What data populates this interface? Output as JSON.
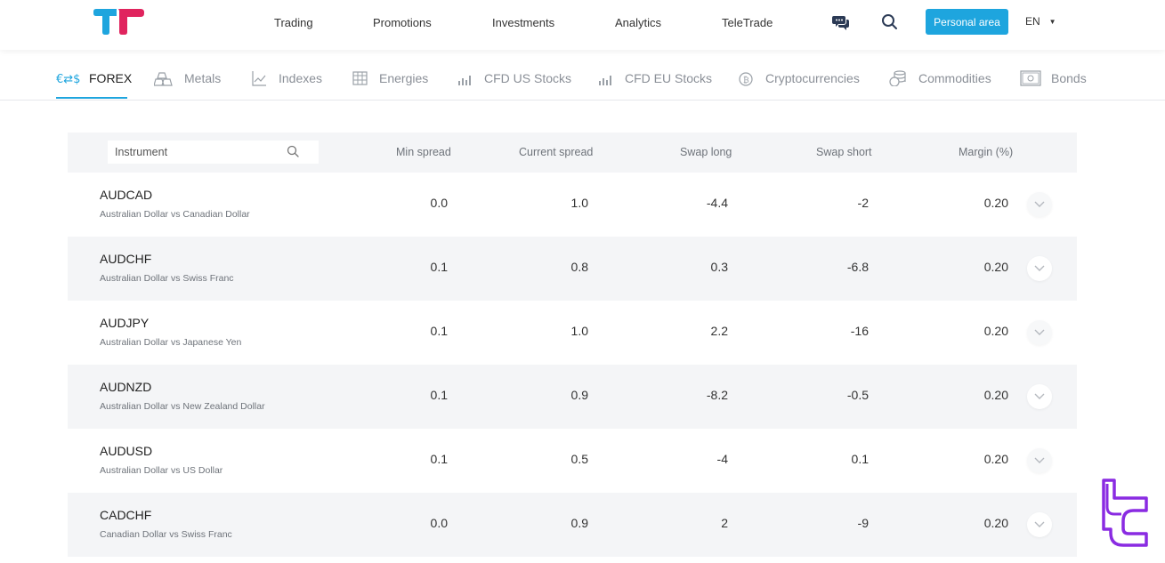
{
  "header": {
    "nav": [
      "Trading",
      "Promotions",
      "Investments",
      "Analytics",
      "TeleTrade"
    ],
    "personal_area": "Personal area",
    "language": "EN",
    "accent": "#1ea5de",
    "logo_colors": [
      "#1ea5de",
      "#e0245e"
    ]
  },
  "tabs": [
    {
      "label": "FOREX",
      "icon": "currency-exchange-icon",
      "active": true
    },
    {
      "label": "Metals",
      "icon": "gold-bars-icon"
    },
    {
      "label": "Indexes",
      "icon": "chart-growth-icon"
    },
    {
      "label": "Energies",
      "icon": "oil-rig-icon"
    },
    {
      "label": "CFD US Stocks",
      "icon": "bar-chart-icon"
    },
    {
      "label": "CFD EU Stocks",
      "icon": "bar-chart-icon"
    },
    {
      "label": "Cryptocurrencies",
      "icon": "bitcoin-icon"
    },
    {
      "label": "Commodities",
      "icon": "coins-stack-icon"
    },
    {
      "label": "Bonds",
      "icon": "certificate-icon"
    }
  ],
  "table": {
    "search_placeholder": "Instrument",
    "columns": [
      "Min spread",
      "Current spread",
      "Swap long",
      "Swap short",
      "Margin (%)"
    ],
    "rows": [
      {
        "symbol": "AUDCAD",
        "description": "Australian Dollar vs Canadian Dollar",
        "min_spread": "0.0",
        "current_spread": "1.0",
        "swap_long": "-4.4",
        "swap_short": "-2",
        "margin": "0.20"
      },
      {
        "symbol": "AUDCHF",
        "description": "Australian Dollar vs Swiss Franc",
        "min_spread": "0.1",
        "current_spread": "0.8",
        "swap_long": "0.3",
        "swap_short": "-6.8",
        "margin": "0.20"
      },
      {
        "symbol": "AUDJPY",
        "description": "Australian Dollar vs Japanese Yen",
        "min_spread": "0.1",
        "current_spread": "1.0",
        "swap_long": "2.2",
        "swap_short": "-16",
        "margin": "0.20"
      },
      {
        "symbol": "AUDNZD",
        "description": "Australian Dollar vs New Zealand Dollar",
        "min_spread": "0.1",
        "current_spread": "0.9",
        "swap_long": "-8.2",
        "swap_short": "-0.5",
        "margin": "0.20"
      },
      {
        "symbol": "AUDUSD",
        "description": "Australian Dollar vs US Dollar",
        "min_spread": "0.1",
        "current_spread": "0.5",
        "swap_long": "-4",
        "swap_short": "0.1",
        "margin": "0.20"
      },
      {
        "symbol": "CADCHF",
        "description": "Canadian Dollar vs Swiss Franc",
        "min_spread": "0.0",
        "current_spread": "0.9",
        "swap_long": "2",
        "swap_short": "-9",
        "margin": "0.20"
      }
    ]
  },
  "watermark_color": "#8a2be2"
}
